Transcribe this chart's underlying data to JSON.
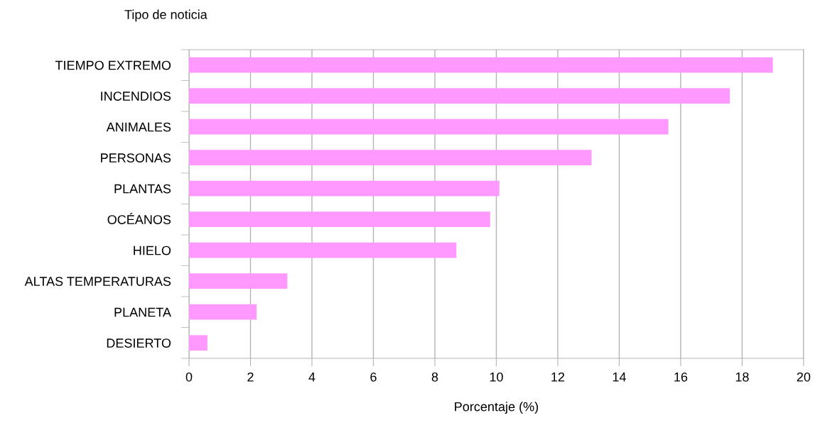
{
  "chart_data": {
    "type": "bar",
    "orientation": "horizontal",
    "ylabel": "Tipo de noticia",
    "xlabel": "Porcentaje (%)",
    "categories": [
      "TIEMPO EXTREMO",
      "INCENDIOS",
      "ANIMALES",
      "PERSONAS",
      "PLANTAS",
      "OCÉANOS",
      "HIELO",
      "ALTAS TEMPERATURAS",
      "PLANETA",
      "DESIERTO"
    ],
    "values": [
      19.0,
      17.6,
      15.6,
      13.1,
      10.1,
      9.8,
      8.7,
      3.2,
      2.2,
      0.6
    ],
    "color": "#ff99ff",
    "xlim": [
      0,
      20
    ],
    "xticks": [
      0,
      2,
      4,
      6,
      8,
      10,
      12,
      14,
      16,
      18,
      20
    ],
    "grid": "x"
  }
}
